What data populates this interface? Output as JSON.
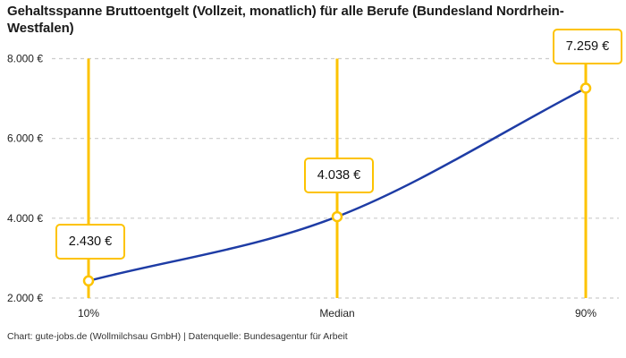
{
  "title": "Gehaltsspanne Bruttoentgelt (Vollzeit, monatlich) für alle Berufe (Bundesland Nordrhein-Westfalen)",
  "footer": "Chart: gute-jobs.de (Wollmilchsau GmbH) | Datenquelle: Bundesagentur für Arbeit",
  "colors": {
    "accent_yellow": "#FDC300",
    "line_blue": "#1E3CA5",
    "grid_gray": "#CCCCCC",
    "text_dark": "#1A1A1A",
    "background": "#FFFFFF"
  },
  "chart_data": {
    "type": "line",
    "title": "Gehaltsspanne Bruttoentgelt (Vollzeit, monatlich) für alle Berufe (Bundesland Nordrhein-Westfalen)",
    "xlabel": "",
    "ylabel": "",
    "categories": [
      "10%",
      "Median",
      "90%"
    ],
    "values": [
      2430,
      4038,
      7259
    ],
    "points": [
      {
        "category": "10%",
        "value": 2430,
        "label": "2.430 €"
      },
      {
        "category": "Median",
        "value": 4038,
        "label": "4.038 €"
      },
      {
        "category": "90%",
        "value": 7259,
        "label": "7.259 €"
      }
    ],
    "ylim": [
      2000,
      8000
    ],
    "yticks": [
      2000,
      4000,
      6000,
      8000
    ],
    "ytick_labels": [
      "2.000 €",
      "4.000 €",
      "6.000 €",
      "8.000 €"
    ],
    "grid": "horizontal-dashed",
    "legend": "none",
    "curve": "smooth-monotone",
    "marker_lines": "vertical-yellow-full-height",
    "source": "Chart: gute-jobs.de (Wollmilchsau GmbH) | Datenquelle: Bundesagentur für Arbeit"
  }
}
